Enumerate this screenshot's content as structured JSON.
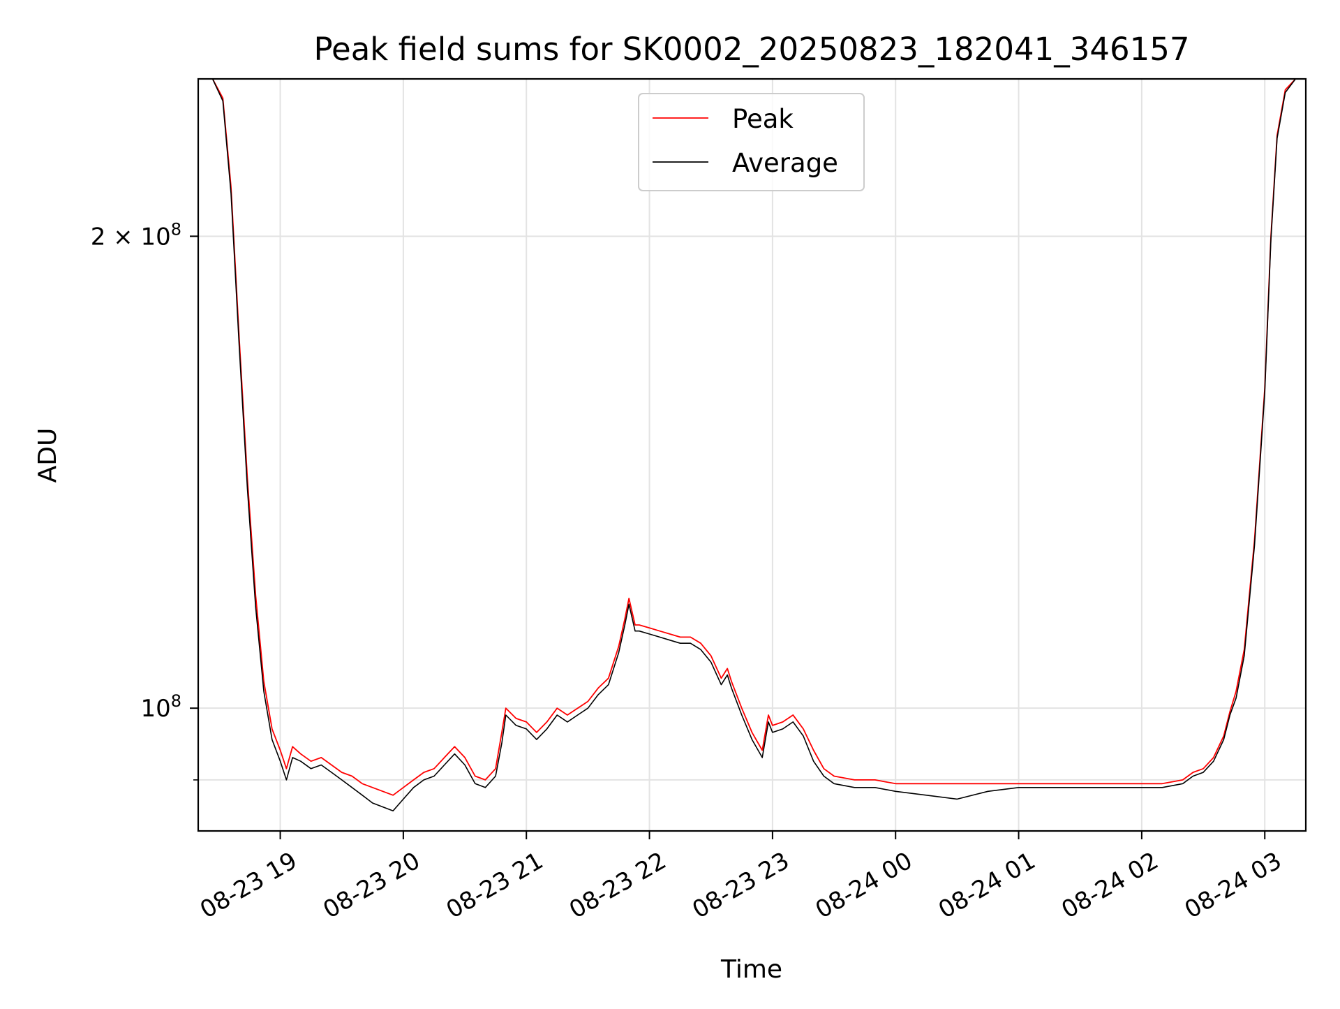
{
  "chart_data": {
    "type": "line",
    "title": "Peak field sums for SK0002_20250823_182041_346157",
    "xlabel": "Time",
    "ylabel": "ADU",
    "y_scale": "log",
    "xlim": [
      "2025-08-23 18:20",
      "2025-08-24 03:20"
    ],
    "ylim": [
      83500000,
      252000000
    ],
    "x_ticks": [
      {
        "value": "2025-08-23 19:00",
        "label": "08-23 19"
      },
      {
        "value": "2025-08-23 20:00",
        "label": "08-23 20"
      },
      {
        "value": "2025-08-23 21:00",
        "label": "08-23 21"
      },
      {
        "value": "2025-08-23 22:00",
        "label": "08-23 22"
      },
      {
        "value": "2025-08-23 23:00",
        "label": "08-23 23"
      },
      {
        "value": "2025-08-24 00:00",
        "label": "08-24 00"
      },
      {
        "value": "2025-08-24 01:00",
        "label": "08-24 01"
      },
      {
        "value": "2025-08-24 02:00",
        "label": "08-24 02"
      },
      {
        "value": "2025-08-24 03:00",
        "label": "08-24 03"
      }
    ],
    "y_major_ticks": [
      {
        "value": 100000000,
        "base": "10",
        "exp": "8",
        "prefix": ""
      },
      {
        "value": 200000000,
        "base": "10",
        "exp": "8",
        "prefix": "2 × "
      }
    ],
    "y_minor_ticks": [
      90000000
    ],
    "grid": true,
    "legend": {
      "position": "upper center"
    },
    "series": [
      {
        "name": "Peak",
        "color": "#ff0000",
        "x": [
          "2025-08-23 18:20",
          "2025-08-23 18:27",
          "2025-08-23 18:32",
          "2025-08-23 18:36",
          "2025-08-23 18:40",
          "2025-08-23 18:44",
          "2025-08-23 18:48",
          "2025-08-23 18:52",
          "2025-08-23 18:56",
          "2025-08-23 19:00",
          "2025-08-23 19:03",
          "2025-08-23 19:06",
          "2025-08-23 19:10",
          "2025-08-23 19:15",
          "2025-08-23 19:20",
          "2025-08-23 19:25",
          "2025-08-23 19:30",
          "2025-08-23 19:35",
          "2025-08-23 19:40",
          "2025-08-23 19:45",
          "2025-08-23 19:50",
          "2025-08-23 19:55",
          "2025-08-23 20:00",
          "2025-08-23 20:05",
          "2025-08-23 20:10",
          "2025-08-23 20:15",
          "2025-08-23 20:20",
          "2025-08-23 20:25",
          "2025-08-23 20:30",
          "2025-08-23 20:35",
          "2025-08-23 20:40",
          "2025-08-23 20:45",
          "2025-08-23 20:48",
          "2025-08-23 20:50",
          "2025-08-23 20:55",
          "2025-08-23 21:00",
          "2025-08-23 21:05",
          "2025-08-23 21:10",
          "2025-08-23 21:15",
          "2025-08-23 21:20",
          "2025-08-23 21:25",
          "2025-08-23 21:30",
          "2025-08-23 21:35",
          "2025-08-23 21:40",
          "2025-08-23 21:45",
          "2025-08-23 21:48",
          "2025-08-23 21:50",
          "2025-08-23 21:53",
          "2025-08-23 21:55",
          "2025-08-23 22:00",
          "2025-08-23 22:05",
          "2025-08-23 22:10",
          "2025-08-23 22:15",
          "2025-08-23 22:20",
          "2025-08-23 22:25",
          "2025-08-23 22:30",
          "2025-08-23 22:35",
          "2025-08-23 22:38",
          "2025-08-23 22:40",
          "2025-08-23 22:45",
          "2025-08-23 22:50",
          "2025-08-23 22:55",
          "2025-08-23 22:58",
          "2025-08-23 23:00",
          "2025-08-23 23:05",
          "2025-08-23 23:10",
          "2025-08-23 23:15",
          "2025-08-23 23:20",
          "2025-08-23 23:25",
          "2025-08-23 23:30",
          "2025-08-23 23:40",
          "2025-08-23 23:50",
          "2025-08-24 00:00",
          "2025-08-24 00:15",
          "2025-08-24 00:30",
          "2025-08-24 00:45",
          "2025-08-24 01:00",
          "2025-08-24 01:15",
          "2025-08-24 01:30",
          "2025-08-24 01:45",
          "2025-08-24 02:00",
          "2025-08-24 02:10",
          "2025-08-24 02:20",
          "2025-08-24 02:25",
          "2025-08-24 02:30",
          "2025-08-24 02:35",
          "2025-08-24 02:40",
          "2025-08-24 02:43",
          "2025-08-24 02:46",
          "2025-08-24 02:50",
          "2025-08-24 02:55",
          "2025-08-24 03:00",
          "2025-08-24 03:03",
          "2025-08-24 03:06",
          "2025-08-24 03:10",
          "2025-08-24 03:15",
          "2025-08-24 03:20"
        ],
        "values": [
          252000000,
          252000000,
          245000000,
          215000000,
          172000000,
          140000000,
          118000000,
          104000000,
          97000000,
          94000000,
          91500000,
          94500000,
          93500000,
          92500000,
          93000000,
          92000000,
          91000000,
          90500000,
          89500000,
          89000000,
          88500000,
          88000000,
          89000000,
          90000000,
          91000000,
          91500000,
          93000000,
          94500000,
          93000000,
          90500000,
          90000000,
          91500000,
          96500000,
          100000000,
          98500000,
          98000000,
          96500000,
          98000000,
          100000000,
          99000000,
          100000000,
          101000000,
          103000000,
          104500000,
          109500000,
          114000000,
          117500000,
          113000000,
          113000000,
          112500000,
          112000000,
          111500000,
          111000000,
          111000000,
          110000000,
          108000000,
          104500000,
          106000000,
          104000000,
          100000000,
          96500000,
          94000000,
          99000000,
          97500000,
          98000000,
          99000000,
          97000000,
          94000000,
          91500000,
          90500000,
          90000000,
          90000000,
          89500000,
          89500000,
          89500000,
          89500000,
          89500000,
          89500000,
          89500000,
          89500000,
          89500000,
          89500000,
          90000000,
          91000000,
          91500000,
          93000000,
          96000000,
          99500000,
          102500000,
          109000000,
          128000000,
          160000000,
          200000000,
          232000000,
          248000000,
          252000000,
          252000000
        ]
      },
      {
        "name": "Average",
        "color": "#000000",
        "x": [
          "2025-08-23 18:20",
          "2025-08-23 18:27",
          "2025-08-23 18:32",
          "2025-08-23 18:36",
          "2025-08-23 18:40",
          "2025-08-23 18:44",
          "2025-08-23 18:48",
          "2025-08-23 18:52",
          "2025-08-23 18:56",
          "2025-08-23 19:00",
          "2025-08-23 19:03",
          "2025-08-23 19:06",
          "2025-08-23 19:10",
          "2025-08-23 19:15",
          "2025-08-23 19:20",
          "2025-08-23 19:25",
          "2025-08-23 19:30",
          "2025-08-23 19:35",
          "2025-08-23 19:40",
          "2025-08-23 19:45",
          "2025-08-23 19:50",
          "2025-08-23 19:55",
          "2025-08-23 20:00",
          "2025-08-23 20:05",
          "2025-08-23 20:10",
          "2025-08-23 20:15",
          "2025-08-23 20:20",
          "2025-08-23 20:25",
          "2025-08-23 20:30",
          "2025-08-23 20:35",
          "2025-08-23 20:40",
          "2025-08-23 20:45",
          "2025-08-23 20:48",
          "2025-08-23 20:50",
          "2025-08-23 20:55",
          "2025-08-23 21:00",
          "2025-08-23 21:05",
          "2025-08-23 21:10",
          "2025-08-23 21:15",
          "2025-08-23 21:20",
          "2025-08-23 21:25",
          "2025-08-23 21:30",
          "2025-08-23 21:35",
          "2025-08-23 21:40",
          "2025-08-23 21:45",
          "2025-08-23 21:48",
          "2025-08-23 21:50",
          "2025-08-23 21:53",
          "2025-08-23 21:55",
          "2025-08-23 22:00",
          "2025-08-23 22:05",
          "2025-08-23 22:10",
          "2025-08-23 22:15",
          "2025-08-23 22:20",
          "2025-08-23 22:25",
          "2025-08-23 22:30",
          "2025-08-23 22:35",
          "2025-08-23 22:38",
          "2025-08-23 22:40",
          "2025-08-23 22:45",
          "2025-08-23 22:50",
          "2025-08-23 22:55",
          "2025-08-23 22:58",
          "2025-08-23 23:00",
          "2025-08-23 23:05",
          "2025-08-23 23:10",
          "2025-08-23 23:15",
          "2025-08-23 23:20",
          "2025-08-23 23:25",
          "2025-08-23 23:30",
          "2025-08-23 23:40",
          "2025-08-23 23:50",
          "2025-08-24 00:00",
          "2025-08-24 00:15",
          "2025-08-24 00:30",
          "2025-08-24 00:45",
          "2025-08-24 01:00",
          "2025-08-24 01:15",
          "2025-08-24 01:30",
          "2025-08-24 01:45",
          "2025-08-24 02:00",
          "2025-08-24 02:10",
          "2025-08-24 02:20",
          "2025-08-24 02:25",
          "2025-08-24 02:30",
          "2025-08-24 02:35",
          "2025-08-24 02:40",
          "2025-08-24 02:43",
          "2025-08-24 02:46",
          "2025-08-24 02:50",
          "2025-08-24 02:55",
          "2025-08-24 03:00",
          "2025-08-24 03:03",
          "2025-08-24 03:06",
          "2025-08-24 03:10",
          "2025-08-24 03:15",
          "2025-08-24 03:20"
        ],
        "values": [
          252000000,
          252000000,
          244000000,
          213000000,
          170000000,
          138000000,
          116000000,
          102500000,
          95500000,
          92500000,
          90000000,
          93000000,
          92500000,
          91500000,
          92000000,
          91000000,
          90000000,
          89000000,
          88000000,
          87000000,
          86500000,
          86000000,
          87500000,
          89000000,
          90000000,
          90500000,
          92000000,
          93500000,
          92000000,
          89500000,
          89000000,
          90500000,
          95000000,
          99000000,
          97500000,
          97000000,
          95500000,
          97000000,
          99000000,
          98000000,
          99000000,
          100000000,
          102000000,
          103500000,
          108500000,
          113000000,
          116500000,
          112000000,
          112000000,
          111500000,
          111000000,
          110500000,
          110000000,
          110000000,
          109000000,
          107000000,
          103500000,
          105000000,
          103000000,
          99000000,
          95500000,
          93000000,
          98000000,
          96500000,
          97000000,
          98000000,
          96000000,
          92500000,
          90500000,
          89500000,
          89000000,
          89000000,
          88500000,
          88000000,
          87500000,
          88500000,
          89000000,
          89000000,
          89000000,
          89000000,
          89000000,
          89000000,
          89500000,
          90500000,
          91000000,
          92500000,
          95500000,
          99000000,
          101500000,
          108000000,
          127000000,
          159000000,
          199000000,
          231000000,
          247000000,
          252000000,
          252000000
        ]
      }
    ]
  }
}
